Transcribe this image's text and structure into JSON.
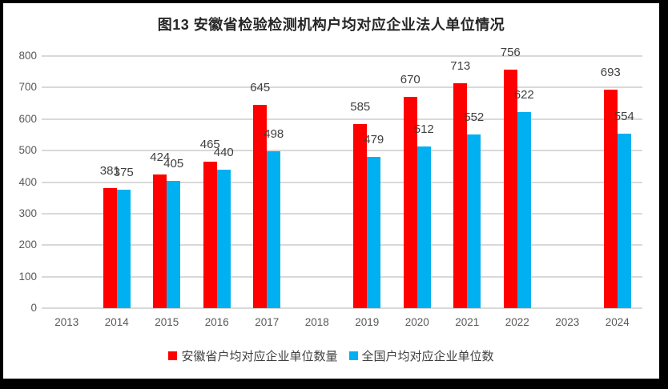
{
  "chart_data": {
    "type": "bar",
    "title": "图13 安徽省检验检测机构户均对应企业法人单位情况",
    "categories": [
      "2013",
      "2014",
      "2015",
      "2016",
      "2017",
      "2018",
      "2019",
      "2020",
      "2021",
      "2022",
      "2023",
      "2024"
    ],
    "series": [
      {
        "name": "安徽省户均对应企业单位数量",
        "color": "#FF0000",
        "values": [
          null,
          381,
          424,
          465,
          645,
          null,
          585,
          670,
          713,
          756,
          null,
          693
        ]
      },
      {
        "name": "全国户均对应企业单位数",
        "color": "#00B0F0",
        "values": [
          null,
          375,
          405,
          440,
          498,
          null,
          479,
          512,
          552,
          622,
          null,
          554
        ]
      }
    ],
    "ylim": [
      0,
      800
    ],
    "ytick_interval": 100,
    "ytick_labels": [
      "0",
      "100",
      "200",
      "300",
      "400",
      "500",
      "600",
      "700",
      "800"
    ],
    "grid": true,
    "data_labels": true,
    "legend_position": "bottom"
  },
  "style": {
    "background": "#FFFFFF",
    "frame_border": "#000000",
    "grid_color": "#D9D9D9",
    "axis_label_color": "#595959",
    "data_label_color": "#404040",
    "legend_text_color": "#404040",
    "title_color": "#262626"
  }
}
